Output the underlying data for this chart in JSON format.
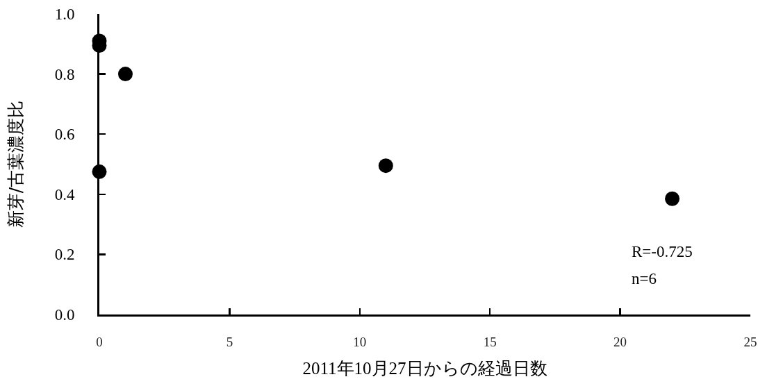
{
  "chart_data": {
    "type": "scatter",
    "xlabel": "2011年10月27日からの経過日数",
    "ylabel": "新芽/古葉濃度比",
    "x": [
      0,
      0,
      1,
      0,
      11,
      22
    ],
    "values": [
      0.91,
      0.895,
      0.8,
      0.475,
      0.495,
      0.385
    ],
    "color": "#000000",
    "marker": "circle",
    "xlim": [
      0,
      25
    ],
    "xticks": [
      0,
      5,
      10,
      15,
      20,
      25
    ],
    "ylim": [
      0,
      1
    ],
    "yticks": [
      {
        "value": 0,
        "label": "0.0"
      },
      0.2,
      0.4,
      0.6,
      0.8,
      {
        "value": 1,
        "label": "1.0"
      }
    ],
    "grid": false,
    "annotations": [
      "R=-0.725",
      "n=6"
    ]
  }
}
